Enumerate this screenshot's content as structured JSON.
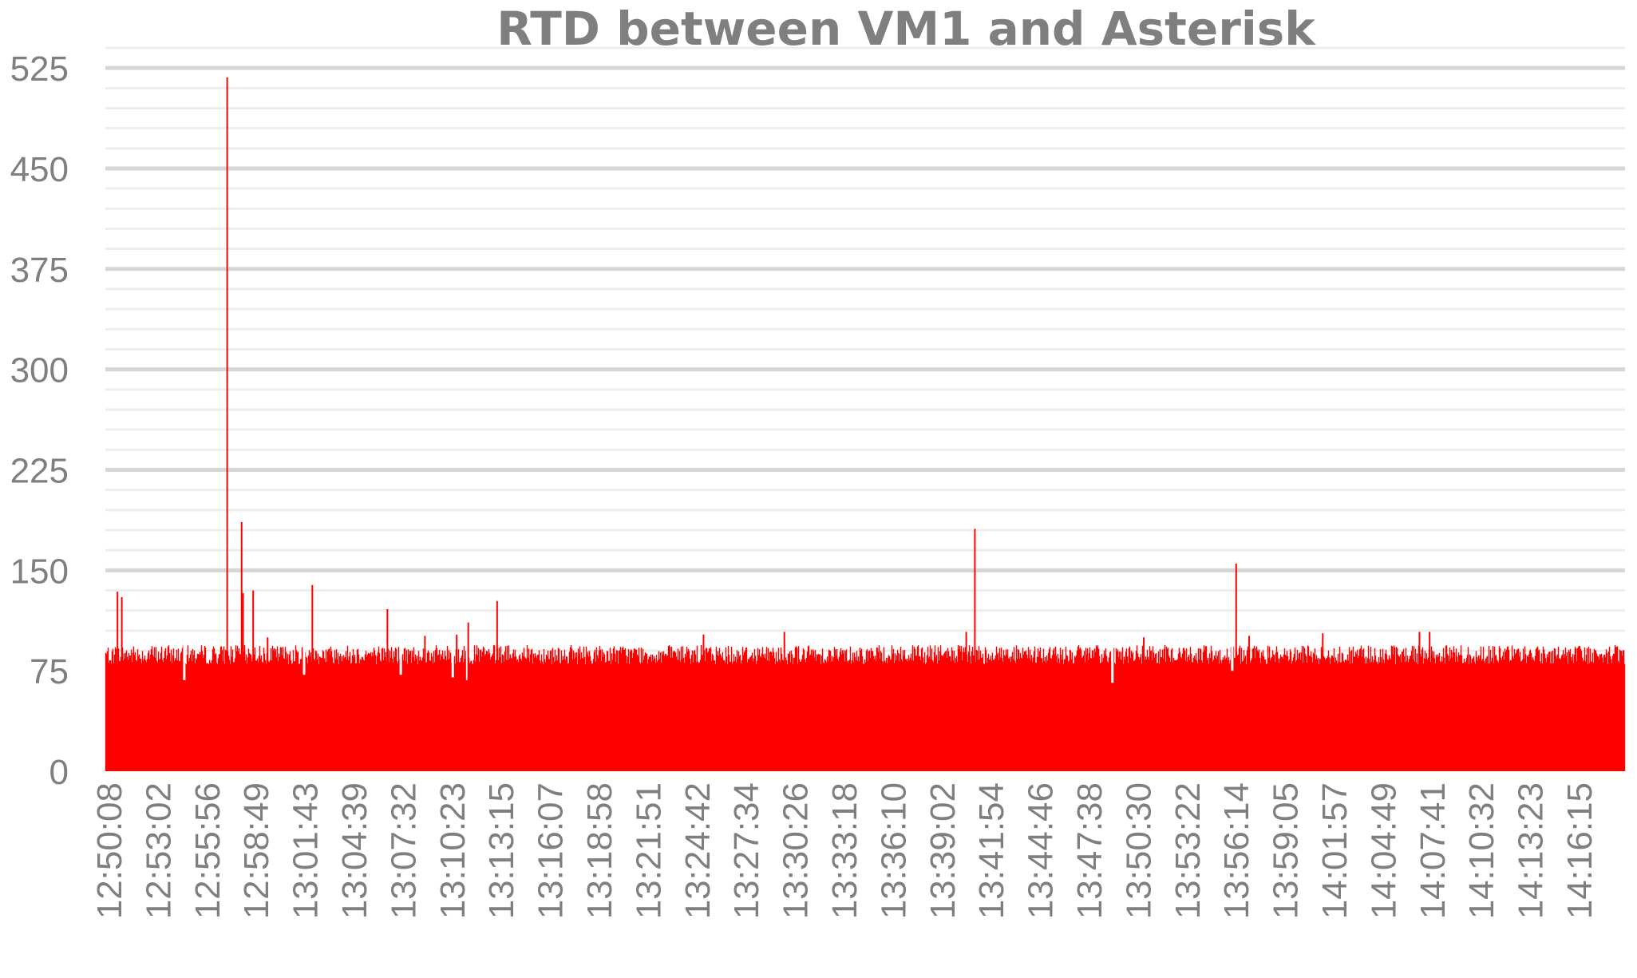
{
  "chart_data": {
    "type": "bar",
    "title": "RTD between VM1 and Asterisk",
    "xlabel": "",
    "ylabel": "",
    "ylim": [
      0,
      540
    ],
    "y_ticks": [
      "0",
      "75",
      "150",
      "225",
      "300",
      "375",
      "450",
      "525"
    ],
    "y_tick_values": [
      0,
      75,
      150,
      225,
      300,
      375,
      450,
      525
    ],
    "y_minor_step": 15,
    "grid": true,
    "legend": "none",
    "bar_color": "#ff0000",
    "x_tick_labels": [
      "12:50:08",
      "12:53:02",
      "12:55:56",
      "12:58:49",
      "13:01:43",
      "13:04:39",
      "13:07:32",
      "13:10:23",
      "13:13:15",
      "13:16:07",
      "13:18:58",
      "13:21:51",
      "13:24:42",
      "13:27:34",
      "13:30:26",
      "13:33:18",
      "13:36:10",
      "13:39:02",
      "13:41:54",
      "13:44:46",
      "13:47:38",
      "13:50:30",
      "13:53:22",
      "13:56:14",
      "13:59:05",
      "14:01:57",
      "14:04:49",
      "14:07:41",
      "14:10:32",
      "14:13:23",
      "14:16:15"
    ],
    "x_range": [
      "12:50:08",
      "14:17:52"
    ],
    "baseline": {
      "typical": 87,
      "low": 80,
      "high": 95
    },
    "spikes": [
      {
        "x": "12:50:50",
        "y": 134
      },
      {
        "x": "12:51:05",
        "y": 130
      },
      {
        "x": "12:57:10",
        "y": 518
      },
      {
        "x": "12:58:00",
        "y": 186
      },
      {
        "x": "12:58:05",
        "y": 133
      },
      {
        "x": "12:58:40",
        "y": 135
      },
      {
        "x": "12:59:30",
        "y": 100
      },
      {
        "x": "13:02:05",
        "y": 139
      },
      {
        "x": "13:06:25",
        "y": 121
      },
      {
        "x": "13:08:35",
        "y": 101
      },
      {
        "x": "13:10:25",
        "y": 102
      },
      {
        "x": "13:11:05",
        "y": 111
      },
      {
        "x": "13:12:45",
        "y": 127
      },
      {
        "x": "13:24:40",
        "y": 102
      },
      {
        "x": "13:29:20",
        "y": 104
      },
      {
        "x": "13:39:50",
        "y": 104
      },
      {
        "x": "13:40:20",
        "y": 181
      },
      {
        "x": "13:50:05",
        "y": 100
      },
      {
        "x": "13:55:25",
        "y": 155
      },
      {
        "x": "13:56:10",
        "y": 101
      },
      {
        "x": "14:00:25",
        "y": 103
      },
      {
        "x": "14:06:00",
        "y": 104
      },
      {
        "x": "14:06:35",
        "y": 104
      }
    ],
    "dips": [
      {
        "x": "12:54:40",
        "y": 68
      },
      {
        "x": "13:01:35",
        "y": 72
      },
      {
        "x": "13:07:10",
        "y": 72
      },
      {
        "x": "13:10:10",
        "y": 70
      },
      {
        "x": "13:11:00",
        "y": 68
      },
      {
        "x": "13:48:15",
        "y": 66
      },
      {
        "x": "13:55:10",
        "y": 75
      }
    ]
  }
}
